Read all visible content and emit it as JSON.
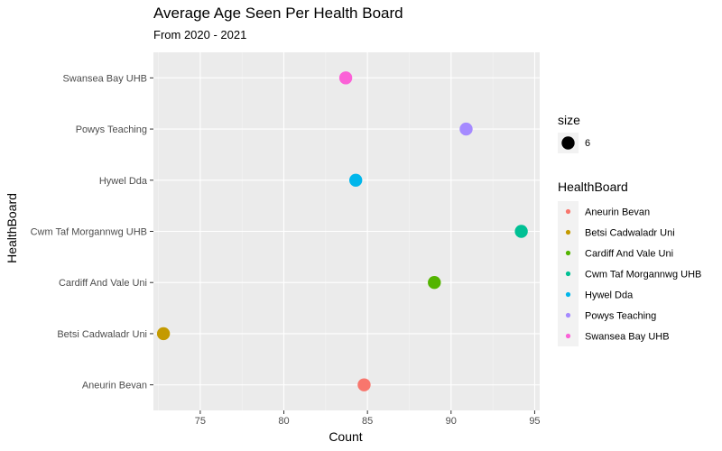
{
  "chart_data": {
    "type": "scatter",
    "title": "Average Age Seen Per Health Board",
    "subtitle": "From 2020 - 2021",
    "xlabel": "Count",
    "ylabel": "HealthBoard",
    "xlim": [
      72.2,
      95.3
    ],
    "xticks": [
      75,
      80,
      85,
      90,
      95
    ],
    "categories": [
      "Aneurin Bevan",
      "Betsi Cadwaladr Uni",
      "Cardiff And Vale Uni",
      "Cwm Taf Morgannwg UHB",
      "Hywel Dda",
      "Powys Teaching",
      "Swansea Bay UHB"
    ],
    "points": [
      {
        "category": "Aneurin Bevan",
        "x": 84.8,
        "color": "#F8766D"
      },
      {
        "category": "Betsi Cadwaladr Uni",
        "x": 72.8,
        "color": "#C49A00"
      },
      {
        "category": "Cardiff And Vale Uni",
        "x": 89.0,
        "color": "#53B400"
      },
      {
        "category": "Cwm Taf Morgannwg UHB",
        "x": 94.2,
        "color": "#00C094"
      },
      {
        "category": "Hywel Dda",
        "x": 84.3,
        "color": "#00B6EB"
      },
      {
        "category": "Powys Teaching",
        "x": 90.9,
        "color": "#A58AFF"
      },
      {
        "category": "Swansea Bay UHB",
        "x": 83.7,
        "color": "#FB61D7"
      }
    ],
    "grid": true,
    "panel_background": "#EBEBEB",
    "legend_position": "right",
    "legends": [
      {
        "title": "size",
        "entries": [
          {
            "label": "6",
            "color": "#000000"
          }
        ]
      },
      {
        "title": "HealthBoard",
        "entries": [
          {
            "label": "Aneurin Bevan",
            "color": "#F8766D"
          },
          {
            "label": "Betsi Cadwaladr Uni",
            "color": "#C49A00"
          },
          {
            "label": "Cardiff And Vale Uni",
            "color": "#53B400"
          },
          {
            "label": "Cwm Taf Morgannwg UHB",
            "color": "#00C094"
          },
          {
            "label": "Hywel Dda",
            "color": "#00B6EB"
          },
          {
            "label": "Powys Teaching",
            "color": "#A58AFF"
          },
          {
            "label": "Swansea Bay UHB",
            "color": "#FB61D7"
          }
        ]
      }
    ]
  }
}
